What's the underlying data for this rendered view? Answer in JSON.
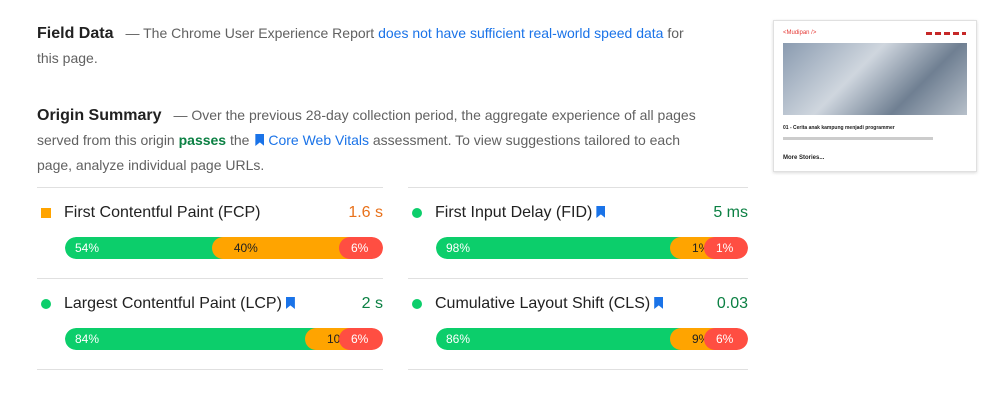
{
  "field_data": {
    "title": "Field Data",
    "text": "— The Chrome User Experience Report ",
    "link": "does not have sufficient real-world speed data",
    "text_end": " for this page."
  },
  "origin_summary": {
    "title": "Origin Summary",
    "text": "— Over the previous 28-day collection period, the aggregate experience of all pages served from this origin ",
    "status": "passes",
    "text_mid": " the ",
    "link": "Core Web Vitals",
    "text_end": " assessment. To view suggestions tailored to each page, analyze individual page URLs."
  },
  "metrics": [
    {
      "name": "First Contentful Paint (FCP)",
      "value": "1.6 s",
      "value_color": "#e8711a",
      "marker": "square",
      "marker_color": "#ffa400",
      "core": false,
      "distribution": [
        {
          "value": 54,
          "label": "54%"
        },
        {
          "value": 40,
          "label": "40%"
        },
        {
          "value": 6,
          "label": "6%"
        }
      ]
    },
    {
      "name": "First Input Delay (FID)",
      "value": "5 ms",
      "value_color": "#0b8043",
      "marker": "circle",
      "marker_color": "#0cce6b",
      "core": true,
      "distribution": [
        {
          "value": 98,
          "label": "98%"
        },
        {
          "value": 1,
          "label": "1%"
        },
        {
          "value": 1,
          "label": "1%"
        }
      ]
    },
    {
      "name": "Largest Contentful Paint (LCP)",
      "value": "2 s",
      "value_color": "#0b8043",
      "marker": "circle",
      "marker_color": "#0cce6b",
      "core": true,
      "distribution": [
        {
          "value": 84,
          "label": "84%"
        },
        {
          "value": 10,
          "label": "10%"
        },
        {
          "value": 6,
          "label": "6%"
        }
      ]
    },
    {
      "name": "Cumulative Layout Shift (CLS)",
      "value": "0.03",
      "value_color": "#0b8043",
      "marker": "circle",
      "marker_color": "#0cce6b",
      "core": true,
      "distribution": [
        {
          "value": 86,
          "label": "86%"
        },
        {
          "value": 9,
          "label": "9%"
        },
        {
          "value": 6,
          "label": "6%"
        }
      ]
    }
  ],
  "segment_colors": [
    "#0cce6b",
    "#ffa400",
    "#ff4e42"
  ],
  "thumbnail": {
    "logo": "<Mudipan />",
    "post_title": "01 - Cerita anak kampung menjadi programmer",
    "more": "More Stories..."
  }
}
